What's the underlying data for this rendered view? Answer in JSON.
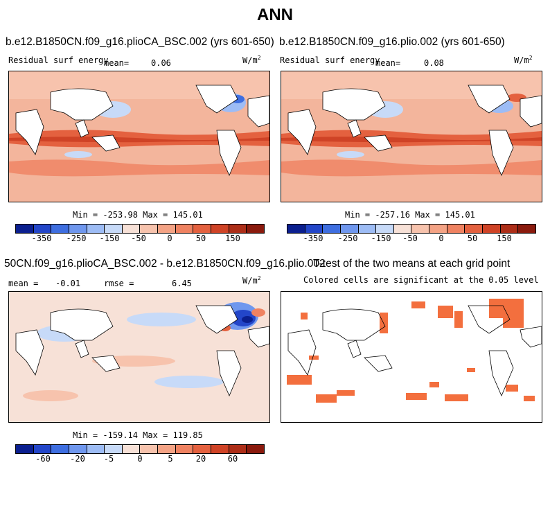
{
  "title": "ANN",
  "panels": {
    "p1": {
      "case": "b.e12.B1850CN.f09_g16.plioCA_BSC.002 (yrs 601-650)",
      "var": "Residual surf energy",
      "mean_label": "mean=",
      "mean": "0.06",
      "units": "W/m",
      "units_exp": "2",
      "stats": "Min = -253.98 Max = 145.01"
    },
    "p2": {
      "case": "b.e12.B1850CN.f09_g16.plio.002 (yrs 601-650)",
      "var": "Residual surf energy",
      "mean_label": "mean=",
      "mean": "0.08",
      "units": "W/m",
      "units_exp": "2",
      "stats": "Min = -257.16 Max = 145.01"
    },
    "p3": {
      "case": "50CN.f09_g16.plioCA_BSC.002 - b.e12.B1850CN.f09_g16.plio.002",
      "mean_label": "mean =",
      "mean": "-0.01",
      "rmse_label": "rmse =",
      "rmse": "6.45",
      "units": "W/m",
      "units_exp": "2",
      "stats": "Min = -159.14 Max = 119.85"
    },
    "p4": {
      "title": "T-test of the two means at each grid point",
      "subtitle": "Colored cells are significant at the 0.05 level"
    }
  },
  "chart_data": [
    {
      "type": "heatmap",
      "title": "b.e12.B1850CN.f09_g16.plioCA_BSC.002 (yrs 601-650)",
      "variable": "Residual surf energy",
      "units": "W/m^2",
      "mean": 0.06,
      "min": -253.98,
      "max": 145.01,
      "colorbar_tick_labels": [
        "-350",
        "-250",
        "-150",
        "-50",
        "0",
        "50",
        "150"
      ]
    },
    {
      "type": "heatmap",
      "title": "b.e12.B1850CN.f09_g16.plio.002 (yrs 601-650)",
      "variable": "Residual surf energy",
      "units": "W/m^2",
      "mean": 0.08,
      "min": -257.16,
      "max": 145.01,
      "colorbar_tick_labels": [
        "-350",
        "-250",
        "-150",
        "-50",
        "0",
        "50",
        "150"
      ]
    },
    {
      "type": "heatmap",
      "title": "50CN.f09_g16.plioCA_BSC.002 - b.e12.B1850CN.f09_g16.plio.002",
      "units": "W/m^2",
      "mean": -0.01,
      "rmse": 6.45,
      "min": -159.14,
      "max": 119.85,
      "colorbar_tick_labels": [
        "-60",
        "-20",
        "-5",
        "0",
        "5",
        "20",
        "60"
      ]
    },
    {
      "type": "heatmap",
      "title": "T-test of the two means at each grid point",
      "subtitle": "Colored cells are significant at the 0.05 level"
    }
  ],
  "colors": {
    "scale": [
      "#0b1f8f",
      "#2346c9",
      "#3e6ee0",
      "#6f97ee",
      "#9dbcf5",
      "#c7daf8",
      "#f7e1d7",
      "#f7c3ad",
      "#f4a385",
      "#ef8261",
      "#e4613f",
      "#cf4326",
      "#ad2e18",
      "#8a1a0d"
    ],
    "ocean_bg": "#f3b59c",
    "land": "#ffffff",
    "ttest": "#f36f3e"
  }
}
